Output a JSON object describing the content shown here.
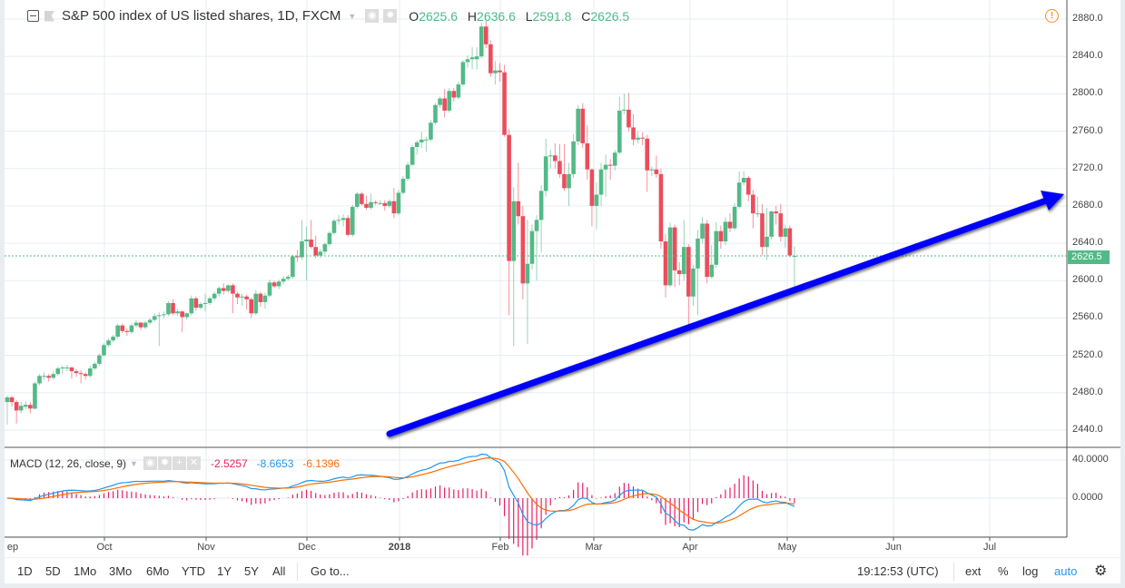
{
  "header": {
    "title": "S&P 500 index of US listed shares, 1D, FXCM",
    "o_label": "O",
    "o_value": "2625.6",
    "h_label": "H",
    "h_value": "2636.6",
    "l_label": "L",
    "l_value": "2591.8",
    "c_label": "C",
    "c_value": "2626.5"
  },
  "macd_legend": {
    "title": "MACD (12, 26, close, 9)",
    "hist_value": "-2.5257",
    "macd_value": "-8.6653",
    "signal_value": "-6.1396"
  },
  "colors": {
    "up": "#53b987",
    "down": "#eb4d5c",
    "macd": "#2196f3",
    "signal": "#ff6d00",
    "hist": "#e91e63",
    "trendline": "#0000ff"
  },
  "last_price_label": "2626.5",
  "bottom_bar": {
    "ranges": [
      "1D",
      "5D",
      "1Mo",
      "3Mo",
      "6Mo",
      "YTD",
      "1Y",
      "5Y",
      "All"
    ],
    "goto": "Go to...",
    "time": "19:12:53 (UTC)",
    "ext": "ext",
    "percent": "%",
    "log": "log",
    "auto": "auto"
  },
  "chart_data": {
    "type": "candlestick",
    "title": "S&P 500 index of US listed shares, 1D, FXCM",
    "ylim": [
      2420,
      2895
    ],
    "y_ticks": [
      "2880.0",
      "2840.0",
      "2800.0",
      "2760.0",
      "2720.0",
      "2680.0",
      "2640.0",
      "2600.0",
      "2560.0",
      "2520.0",
      "2480.0",
      "2440.0"
    ],
    "x_ticks": [
      "ep",
      "Oct",
      "Nov",
      "Dec",
      "2018",
      "Feb",
      "Mar",
      "Apr",
      "May",
      "Jun",
      "Jul"
    ],
    "macd_ticks": [
      "40.0000",
      "0.0000"
    ],
    "last_price": 2626.5,
    "candles_ohlc": [
      [
        2470,
        2477,
        2446,
        2475
      ],
      [
        2475,
        2477,
        2465,
        2470
      ],
      [
        2470,
        2472,
        2447,
        2461
      ],
      [
        2461,
        2470,
        2458,
        2466
      ],
      [
        2465,
        2471,
        2462,
        2467
      ],
      [
        2467,
        2470,
        2458,
        2463
      ],
      [
        2463,
        2492,
        2462,
        2490
      ],
      [
        2490,
        2500,
        2488,
        2498
      ],
      [
        2498,
        2502,
        2494,
        2498
      ],
      [
        2498,
        2500,
        2492,
        2496
      ],
      [
        2496,
        2503,
        2494,
        2500
      ],
      [
        2500,
        2508,
        2498,
        2506
      ],
      [
        2506,
        2509,
        2500,
        2507
      ],
      [
        2507,
        2510,
        2503,
        2507
      ],
      [
        2507,
        2508,
        2495,
        2503
      ],
      [
        2503,
        2505,
        2497,
        2501
      ],
      [
        2501,
        2504,
        2490,
        2500
      ],
      [
        2500,
        2502,
        2494,
        2498
      ],
      [
        2498,
        2509,
        2496,
        2506
      ],
      [
        2506,
        2513,
        2504,
        2511
      ],
      [
        2511,
        2522,
        2509,
        2520
      ],
      [
        2520,
        2533,
        2519,
        2531
      ],
      [
        2531,
        2538,
        2529,
        2536
      ],
      [
        2536,
        2542,
        2534,
        2540
      ],
      [
        2540,
        2554,
        2538,
        2552
      ],
      [
        2552,
        2554,
        2544,
        2546
      ],
      [
        2546,
        2549,
        2541,
        2545
      ],
      [
        2545,
        2554,
        2543,
        2552
      ],
      [
        2552,
        2558,
        2550,
        2555
      ],
      [
        2555,
        2556,
        2547,
        2550
      ],
      [
        2550,
        2557,
        2548,
        2555
      ],
      [
        2555,
        2560,
        2553,
        2558
      ],
      [
        2558,
        2565,
        2556,
        2562
      ],
      [
        2562,
        2566,
        2530,
        2563
      ],
      [
        2563,
        2567,
        2560,
        2564
      ],
      [
        2564,
        2578,
        2562,
        2576
      ],
      [
        2576,
        2580,
        2563,
        2565
      ],
      [
        2565,
        2570,
        2562,
        2567
      ],
      [
        2567,
        2568,
        2545,
        2561
      ],
      [
        2561,
        2566,
        2558,
        2565
      ],
      [
        2565,
        2584,
        2563,
        2581
      ],
      [
        2581,
        2583,
        2568,
        2571
      ],
      [
        2571,
        2577,
        2569,
        2575
      ],
      [
        2575,
        2586,
        2567,
        2576
      ],
      [
        2576,
        2583,
        2574,
        2581
      ],
      [
        2581,
        2588,
        2578,
        2586
      ],
      [
        2586,
        2594,
        2583,
        2592
      ],
      [
        2592,
        2597,
        2585,
        2589
      ],
      [
        2589,
        2596,
        2587,
        2595
      ],
      [
        2595,
        2597,
        2565,
        2586
      ],
      [
        2586,
        2588,
        2575,
        2582
      ],
      [
        2582,
        2586,
        2573,
        2583
      ],
      [
        2583,
        2585,
        2569,
        2580
      ],
      [
        2580,
        2582,
        2560,
        2565
      ],
      [
        2565,
        2590,
        2563,
        2586
      ],
      [
        2586,
        2588,
        2572,
        2577
      ],
      [
        2577,
        2587,
        2570,
        2584
      ],
      [
        2584,
        2601,
        2582,
        2598
      ],
      [
        2598,
        2600,
        2592,
        2594
      ],
      [
        2594,
        2601,
        2591,
        2599
      ],
      [
        2599,
        2605,
        2596,
        2602
      ],
      [
        2602,
        2606,
        2600,
        2604
      ],
      [
        2604,
        2628,
        2602,
        2626
      ],
      [
        2626,
        2633,
        2620,
        2625
      ],
      [
        2625,
        2665,
        2622,
        2642
      ],
      [
        2642,
        2658,
        2600,
        2644
      ],
      [
        2644,
        2665,
        2634,
        2636
      ],
      [
        2636,
        2648,
        2624,
        2627
      ],
      [
        2627,
        2634,
        2624,
        2631
      ],
      [
        2631,
        2641,
        2628,
        2639
      ],
      [
        2639,
        2653,
        2637,
        2651
      ],
      [
        2651,
        2666,
        2649,
        2664
      ],
      [
        2664,
        2670,
        2660,
        2665
      ],
      [
        2665,
        2671,
        2658,
        2667
      ],
      [
        2667,
        2670,
        2647,
        2649
      ],
      [
        2649,
        2681,
        2647,
        2679
      ],
      [
        2679,
        2695,
        2677,
        2693
      ],
      [
        2693,
        2695,
        2680,
        2682
      ],
      [
        2682,
        2691,
        2676,
        2678
      ],
      [
        2678,
        2693,
        2676,
        2684
      ],
      [
        2684,
        2686,
        2681,
        2683
      ],
      [
        2683,
        2686,
        2681,
        2683
      ],
      [
        2683,
        2686,
        2675,
        2680
      ],
      [
        2680,
        2687,
        2678,
        2685
      ],
      [
        2685,
        2699,
        2667,
        2672
      ],
      [
        2672,
        2697,
        2670,
        2694
      ],
      [
        2694,
        2712,
        2692,
        2709
      ],
      [
        2709,
        2727,
        2707,
        2724
      ],
      [
        2724,
        2745,
        2722,
        2743
      ],
      [
        2743,
        2750,
        2735,
        2748
      ],
      [
        2748,
        2759,
        2742,
        2751
      ],
      [
        2751,
        2754,
        2738,
        2751
      ],
      [
        2751,
        2772,
        2749,
        2769
      ],
      [
        2769,
        2790,
        2767,
        2788
      ],
      [
        2788,
        2797,
        2785,
        2795
      ],
      [
        2795,
        2805,
        2775,
        2782
      ],
      [
        2782,
        2806,
        2780,
        2803
      ],
      [
        2803,
        2806,
        2792,
        2796
      ],
      [
        2796,
        2813,
        2794,
        2810
      ],
      [
        2810,
        2836,
        2808,
        2834
      ],
      [
        2834,
        2841,
        2828,
        2837
      ],
      [
        2837,
        2850,
        2826,
        2839
      ],
      [
        2837,
        2850,
        2826,
        2840
      ],
      [
        2840,
        2876,
        2838,
        2872
      ],
      [
        2872,
        2878,
        2849,
        2853
      ],
      [
        2853,
        2857,
        2818,
        2822
      ],
      [
        2822,
        2835,
        2810,
        2825
      ],
      [
        2825,
        2833,
        2813,
        2823
      ],
      [
        2823,
        2831,
        2754,
        2756
      ],
      [
        2756,
        2762,
        2563,
        2621
      ],
      [
        2621,
        2700,
        2530,
        2685
      ],
      [
        2685,
        2726,
        2660,
        2669
      ],
      [
        2669,
        2680,
        2580,
        2597
      ],
      [
        2597,
        2665,
        2532,
        2618
      ],
      [
        2618,
        2660,
        2612,
        2653
      ],
      [
        2653,
        2670,
        2600,
        2665
      ],
      [
        2665,
        2702,
        2630,
        2696
      ],
      [
        2696,
        2752,
        2690,
        2733
      ],
      [
        2733,
        2740,
        2720,
        2734
      ],
      [
        2734,
        2747,
        2720,
        2728
      ],
      [
        2728,
        2746,
        2710,
        2714
      ],
      [
        2714,
        2746,
        2696,
        2699
      ],
      [
        2699,
        2726,
        2680,
        2714
      ],
      [
        2714,
        2757,
        2710,
        2749
      ],
      [
        2749,
        2788,
        2745,
        2784
      ],
      [
        2784,
        2790,
        2742,
        2747
      ],
      [
        2747,
        2766,
        2708,
        2719
      ],
      [
        2719,
        2720,
        2658,
        2680
      ],
      [
        2680,
        2705,
        2655,
        2692
      ],
      [
        2692,
        2726,
        2680,
        2719
      ],
      [
        2719,
        2735,
        2690,
        2724
      ],
      [
        2724,
        2730,
        2708,
        2723
      ],
      [
        2723,
        2740,
        2718,
        2737
      ],
      [
        2737,
        2797,
        2735,
        2782
      ],
      [
        2782,
        2800,
        2778,
        2783
      ],
      [
        2783,
        2801,
        2760,
        2764
      ],
      [
        2764,
        2778,
        2745,
        2751
      ],
      [
        2751,
        2760,
        2747,
        2753
      ],
      [
        2753,
        2759,
        2745,
        2752
      ],
      [
        2752,
        2756,
        2695,
        2718
      ],
      [
        2718,
        2722,
        2712,
        2719
      ],
      [
        2719,
        2734,
        2710,
        2714
      ],
      [
        2714,
        2720,
        2634,
        2642
      ],
      [
        2642,
        2650,
        2582,
        2595
      ],
      [
        2595,
        2662,
        2593,
        2657
      ],
      [
        2657,
        2660,
        2593,
        2611
      ],
      [
        2611,
        2620,
        2595,
        2607
      ],
      [
        2607,
        2665,
        2600,
        2636
      ],
      [
        2636,
        2639,
        2553,
        2583
      ],
      [
        2583,
        2617,
        2573,
        2613
      ],
      [
        2613,
        2654,
        2563,
        2645
      ],
      [
        2645,
        2668,
        2640,
        2661
      ],
      [
        2661,
        2665,
        2597,
        2604
      ],
      [
        2604,
        2638,
        2602,
        2617
      ],
      [
        2617,
        2663,
        2614,
        2653
      ],
      [
        2653,
        2659,
        2634,
        2642
      ],
      [
        2642,
        2668,
        2638,
        2663
      ],
      [
        2663,
        2672,
        2652,
        2656
      ],
      [
        2656,
        2683,
        2654,
        2679
      ],
      [
        2679,
        2717,
        2677,
        2705
      ],
      [
        2705,
        2717,
        2702,
        2710
      ],
      [
        2710,
        2712,
        2685,
        2692
      ],
      [
        2692,
        2697,
        2656,
        2672
      ],
      [
        2672,
        2690,
        2668,
        2672
      ],
      [
        2672,
        2682,
        2627,
        2636
      ],
      [
        2636,
        2678,
        2622,
        2647
      ],
      [
        2647,
        2675,
        2644,
        2674
      ],
      [
        2674,
        2680,
        2660,
        2672
      ],
      [
        2672,
        2682,
        2642,
        2647
      ],
      [
        2647,
        2660,
        2635,
        2656
      ],
      [
        2656,
        2659,
        2625,
        2627
      ],
      [
        2625.6,
        2636.6,
        2591.8,
        2626.5
      ]
    ],
    "macd": {
      "fast": 12,
      "slow": 26,
      "signal": 9,
      "source": "close"
    }
  }
}
